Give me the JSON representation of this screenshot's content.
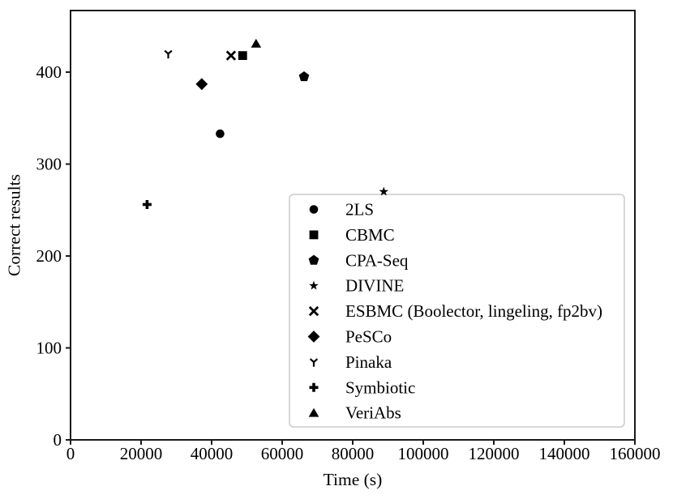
{
  "figure": {
    "background": "#ffffff",
    "marker_color": "#000000",
    "spine_color": "#1a1a1a",
    "legend_border_color": "#cccccc"
  },
  "chart_data": {
    "type": "scatter",
    "title": "",
    "xlabel": "Time (s)",
    "ylabel": "Correct results",
    "xlim": [
      0,
      160000
    ],
    "ylim": [
      0,
      467
    ],
    "xticks": [
      0,
      20000,
      40000,
      60000,
      80000,
      100000,
      120000,
      140000,
      160000
    ],
    "yticks": [
      0,
      100,
      200,
      300,
      400
    ],
    "grid": false,
    "legend_position": "lower right",
    "series": [
      {
        "name": "2LS",
        "marker": "circle",
        "color": "#000000",
        "points": [
          [
            42400,
            333
          ]
        ]
      },
      {
        "name": "CBMC",
        "marker": "square",
        "color": "#000000",
        "points": [
          [
            48800,
            418
          ]
        ]
      },
      {
        "name": "CPA-Seq",
        "marker": "pentagon",
        "color": "#000000",
        "points": [
          [
            66200,
            395
          ]
        ]
      },
      {
        "name": "DIVINE",
        "marker": "star",
        "color": "#000000",
        "points": [
          [
            88800,
            270
          ]
        ]
      },
      {
        "name": "ESBMC (Boolector, lingeling, fp2bv)",
        "marker": "x",
        "color": "#000000",
        "points": [
          [
            45500,
            418
          ]
        ]
      },
      {
        "name": "PeSCo",
        "marker": "diamond",
        "color": "#000000",
        "points": [
          [
            37200,
            387
          ]
        ]
      },
      {
        "name": "Pinaka",
        "marker": "tri-down-y",
        "color": "#000000",
        "points": [
          [
            27700,
            420
          ]
        ]
      },
      {
        "name": "Symbiotic",
        "marker": "plus",
        "color": "#000000",
        "points": [
          [
            21700,
            256
          ]
        ]
      },
      {
        "name": "VeriAbs",
        "marker": "triangle-up",
        "color": "#000000",
        "points": [
          [
            52600,
            431
          ]
        ]
      }
    ]
  }
}
